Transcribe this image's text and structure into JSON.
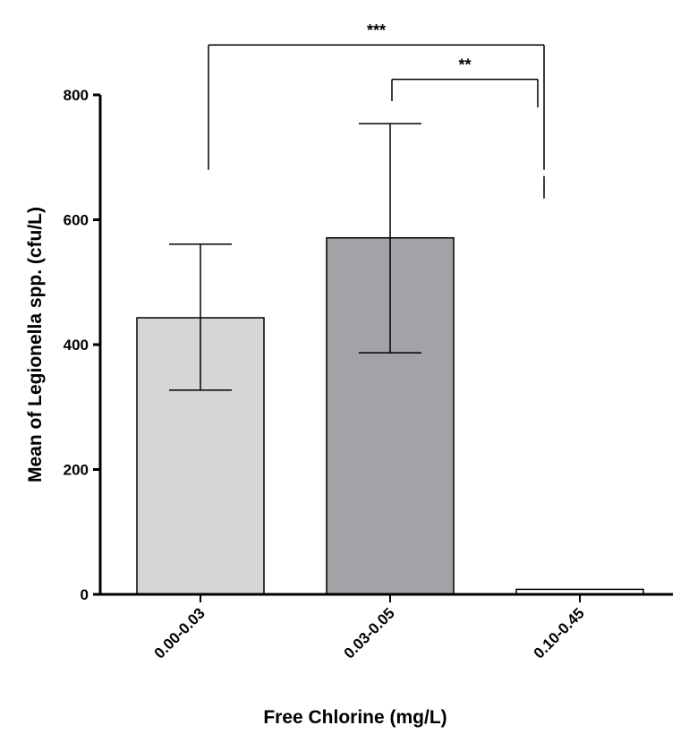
{
  "chart_data": {
    "type": "bar",
    "title": "",
    "xlabel": "Free Chlorine (mg/L)",
    "ylabel": "Mean of Legionella spp. (cfu/L)",
    "ylim": [
      0,
      800
    ],
    "yticks": [
      0,
      200,
      400,
      600,
      800
    ],
    "categories": [
      "0.00-0.03",
      "0.03-0.05",
      "0.10-0.45"
    ],
    "values": [
      443,
      571,
      8
    ],
    "error_low": [
      327,
      387,
      8
    ],
    "error_high": [
      561,
      754,
      8
    ],
    "bar_colors": [
      "#d6d6d6",
      "#a3a3a7",
      "#ffffff"
    ],
    "bar_edge_color": "#000000",
    "grid": false,
    "legend": "none",
    "significance": [
      {
        "label": "***",
        "from": 0,
        "to": 2,
        "level": 880,
        "drop_from": 680,
        "drop_to": 680
      },
      {
        "label": "**",
        "from": 1,
        "to": 2,
        "level": 825,
        "drop_from": 790,
        "drop_to": 780,
        "drop_to_right_lower": 670
      }
    ]
  }
}
